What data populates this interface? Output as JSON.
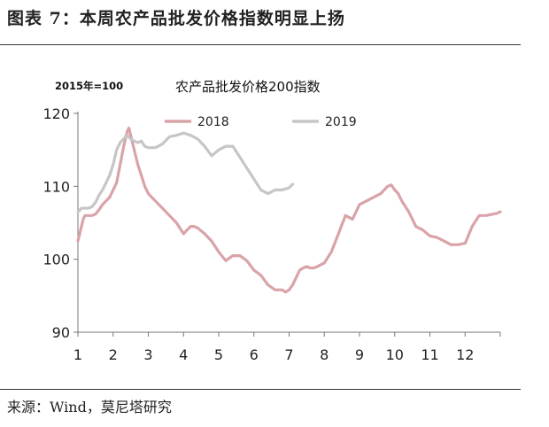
{
  "figure_title": "图表 7：本周农产品批发价格指数明显上扬",
  "source": "来源：Wind，莫尼塔研究",
  "chart_data": {
    "type": "line",
    "title": "农产品批发价格200指数",
    "unit_note": "2015年=100",
    "xlabel": "",
    "ylabel": "",
    "x_ticks": [
      "1",
      "2",
      "3",
      "4",
      "5",
      "6",
      "7",
      "8",
      "9",
      "10",
      "11",
      "12"
    ],
    "xlim": [
      1,
      13
    ],
    "y_ticks": [
      90,
      100,
      110,
      120
    ],
    "ylim": [
      90,
      120
    ],
    "grid": false,
    "legend_position": "top",
    "series": [
      {
        "name": "2018",
        "color": "#d9a3a8",
        "x": [
          1.0,
          1.05,
          1.1,
          1.15,
          1.2,
          1.3,
          1.4,
          1.5,
          1.6,
          1.7,
          1.8,
          1.9,
          2.0,
          2.1,
          2.2,
          2.3,
          2.4,
          2.45,
          2.5,
          2.6,
          2.7,
          2.8,
          2.9,
          3.0,
          3.1,
          3.2,
          3.4,
          3.6,
          3.8,
          4.0,
          4.1,
          4.2,
          4.3,
          4.4,
          4.6,
          4.8,
          5.0,
          5.2,
          5.4,
          5.6,
          5.8,
          6.0,
          6.2,
          6.4,
          6.6,
          6.8,
          6.9,
          7.0,
          7.1,
          7.2,
          7.3,
          7.4,
          7.5,
          7.6,
          7.7,
          7.8,
          8.0,
          8.2,
          8.4,
          8.6,
          8.8,
          9.0,
          9.2,
          9.4,
          9.6,
          9.8,
          9.9,
          10.0,
          10.1,
          10.2,
          10.4,
          10.6,
          10.8,
          11.0,
          11.2,
          11.4,
          11.6,
          11.8,
          12.0,
          12.2,
          12.4,
          12.6,
          12.8,
          12.9,
          13.0
        ],
        "y": [
          102.5,
          103.5,
          104.5,
          105.5,
          106.0,
          106.0,
          106.0,
          106.2,
          106.8,
          107.5,
          108.0,
          108.5,
          109.5,
          110.5,
          113.0,
          115.5,
          117.5,
          118.0,
          117.0,
          115.0,
          113.0,
          111.5,
          110.0,
          109.0,
          108.5,
          108.0,
          107.0,
          106.0,
          105.0,
          103.5,
          104.0,
          104.5,
          104.5,
          104.3,
          103.5,
          102.5,
          101.0,
          99.8,
          100.5,
          100.5,
          99.8,
          98.5,
          97.8,
          96.5,
          95.8,
          95.8,
          95.5,
          95.8,
          96.5,
          97.5,
          98.5,
          98.8,
          99.0,
          98.8,
          98.8,
          99.0,
          99.5,
          101.0,
          103.5,
          106.0,
          105.5,
          107.5,
          108.0,
          108.5,
          109.0,
          110.0,
          110.2,
          109.5,
          109.0,
          108.0,
          106.5,
          104.5,
          104.0,
          103.2,
          103.0,
          102.5,
          102.0,
          102.0,
          102.2,
          104.5,
          106.0,
          106.0,
          106.2,
          106.3,
          106.5
        ]
      },
      {
        "name": "2019",
        "color": "#c6c6c6",
        "x": [
          1.0,
          1.1,
          1.2,
          1.3,
          1.4,
          1.5,
          1.6,
          1.7,
          1.8,
          1.9,
          2.0,
          2.1,
          2.2,
          2.4,
          2.5,
          2.6,
          2.7,
          2.8,
          2.9,
          3.0,
          3.2,
          3.4,
          3.6,
          3.8,
          4.0,
          4.2,
          4.4,
          4.6,
          4.8,
          5.0,
          5.2,
          5.4,
          5.6,
          5.8,
          6.0,
          6.2,
          6.4,
          6.6,
          6.8,
          7.0,
          7.1
        ],
        "y": [
          106.5,
          107.0,
          107.0,
          107.0,
          107.2,
          107.8,
          108.8,
          109.5,
          110.5,
          111.5,
          113.0,
          115.0,
          116.0,
          117.0,
          116.5,
          116.2,
          116.0,
          116.2,
          115.5,
          115.3,
          115.3,
          115.8,
          116.8,
          117.0,
          117.3,
          117.0,
          116.5,
          115.5,
          114.2,
          115.0,
          115.5,
          115.5,
          114.0,
          112.5,
          111.0,
          109.5,
          109.0,
          109.5,
          109.5,
          109.8,
          110.3
        ]
      }
    ]
  }
}
